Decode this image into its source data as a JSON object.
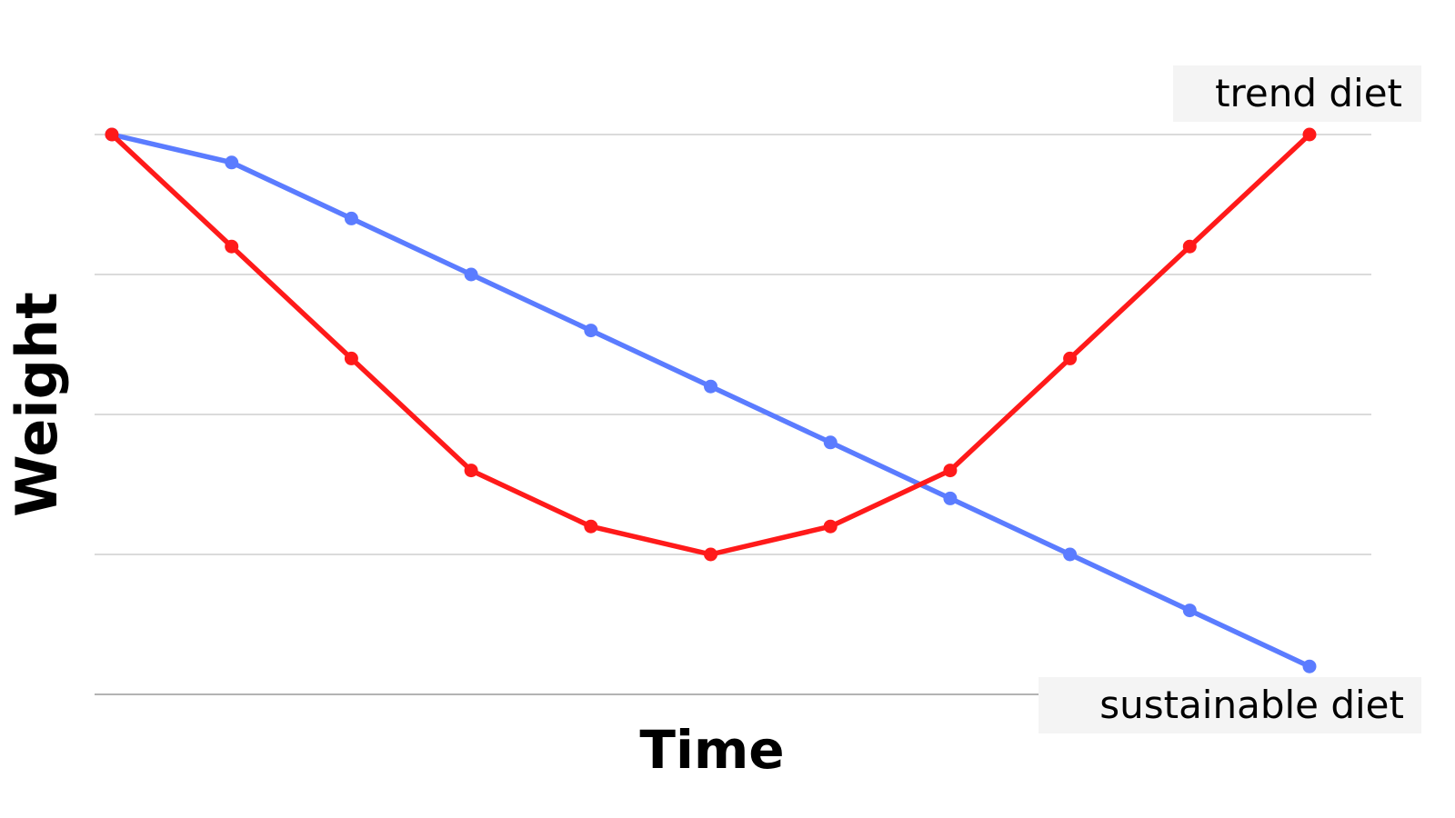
{
  "chart_data": {
    "type": "line",
    "title": "",
    "xlabel": "Time",
    "ylabel": "Weight",
    "x": [
      0,
      1,
      2,
      3,
      4,
      5,
      6,
      7,
      8,
      9,
      10
    ],
    "ylim": [
      0,
      4
    ],
    "grid": true,
    "legend": "none",
    "series": [
      {
        "name": "trend diet",
        "color": "#ff1a1a",
        "values": [
          4.0,
          3.2,
          2.4,
          1.6,
          1.2,
          1.0,
          1.2,
          1.6,
          2.4,
          3.2,
          4.0
        ]
      },
      {
        "name": "sustainable diet",
        "color": "#5b7cff",
        "values": [
          4.0,
          3.8,
          3.4,
          3.0,
          2.6,
          2.2,
          1.8,
          1.4,
          1.0,
          0.6,
          0.2
        ]
      }
    ]
  }
}
